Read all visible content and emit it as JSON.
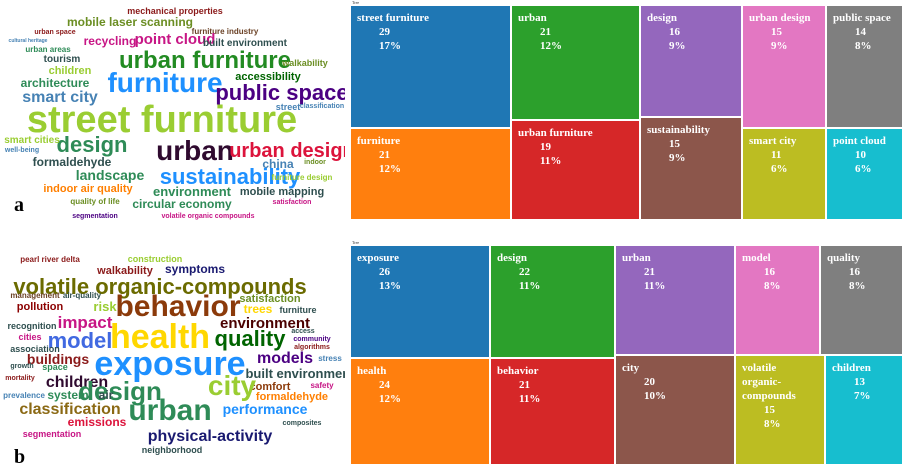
{
  "panel_labels": [
    "a",
    "b"
  ],
  "word_clouds": [
    {
      "words": [
        "mechanical properties",
        "mobile laser scanning",
        "urban space",
        "furniture industry",
        "point cloud",
        "cultural heritage",
        "built environment",
        "urban areas",
        "recycling",
        "urban furniture",
        "tourism",
        "children",
        "furniture",
        "walkability",
        "accessibility",
        "architecture",
        "smart city",
        "public space",
        "street",
        "classification",
        "street furniture",
        "design",
        "urban",
        "urban design",
        "smart cities",
        "well-being",
        "formaldehyde",
        "sustainability",
        "china",
        "indoor",
        "landscape",
        "furniture design",
        "indoor air quality",
        "environment",
        "mobile mapping",
        "quality of life",
        "circular economy",
        "segmentation",
        "volatile organic compounds",
        "satisfaction"
      ],
      "colors": [
        "#8b1a1a",
        "#6b8e23",
        "#8b1a1a",
        "#6b4226",
        "#c71585",
        "#4682b4",
        "#2f4f4f",
        "#2e8b57",
        "#c71585",
        "#228b22",
        "#2f4f4f",
        "#9acd32",
        "#1e90ff",
        "#6b8e23",
        "#006400",
        "#2e8b57",
        "#4682b4",
        "#4b0082",
        "#4682b4",
        "#4682b4",
        "#9acd32",
        "#2e8b57",
        "#2f0a2f",
        "#dc143c",
        "#9acd32",
        "#4682b4",
        "#2f4f4f",
        "#1e90ff",
        "#4682b4",
        "#6b8e23",
        "#2e8b57",
        "#9acd32",
        "#ff7f00",
        "#2e8b57",
        "#2f4f4f",
        "#6b8e23",
        "#2e8b57",
        "#4b0082",
        "#c71585",
        "#c71585"
      ]
    },
    {
      "words": [
        "pearl river delta",
        "construction",
        "walkability",
        "symptoms",
        "volatile organic-compounds",
        "management",
        "air-quality",
        "behavior",
        "satisfaction",
        "pollution",
        "risk",
        "trees",
        "furniture",
        "impact",
        "environment",
        "recognition",
        "health",
        "cities",
        "model",
        "quality",
        "access",
        "community",
        "algorithms",
        "association",
        "buildings",
        "models",
        "exposure",
        "stress",
        "growth",
        "space",
        "built environment",
        "mortality",
        "children",
        "comfort",
        "safety",
        "design",
        "city",
        "formaldehyde",
        "prevalence",
        "system",
        "air",
        "classification",
        "urban",
        "performance",
        "composites",
        "emissions",
        "segmentation",
        "physical-activity",
        "neighborhood"
      ],
      "colors": [
        "#8b1a1a",
        "#9acd32",
        "#8b1a1a",
        "#191970",
        "#6b6b00",
        "#6b4226",
        "#2f4f4f",
        "#8b3a0a",
        "#6b8e23",
        "#8b0000",
        "#9acd32",
        "#ffd700",
        "#2f4f4f",
        "#c71585",
        "#4b0000",
        "#2f4f4f",
        "#ffd700",
        "#c71585",
        "#4169e1",
        "#006400",
        "#2f4f4f",
        "#4b0082",
        "#8b1a1a",
        "#2f4f4f",
        "#8b1a1a",
        "#4b0082",
        "#1e90ff",
        "#4682b4",
        "#2f4f4f",
        "#2e8b57",
        "#2f4f4f",
        "#8b1a1a",
        "#2f0a2f",
        "#8b3a0a",
        "#c71585",
        "#2e8b57",
        "#9acd32",
        "#ff7f00",
        "#4682b4",
        "#2e8b57",
        "#2f4f4f",
        "#8b6914",
        "#2e8b57",
        "#1e90ff",
        "#2f4f4f",
        "#dc143c",
        "#c71585",
        "#191970",
        "#2f4f4f"
      ]
    }
  ],
  "chart_data": [
    {
      "type": "treemap",
      "title": "Tree",
      "categories": [
        "street furniture",
        "urban",
        "design",
        "urban design",
        "public space",
        "furniture",
        "urban furniture",
        "sustainability",
        "smart city",
        "point cloud"
      ],
      "values": [
        29,
        21,
        16,
        15,
        14,
        21,
        19,
        15,
        11,
        10
      ],
      "percent_labels": [
        "17%",
        "12%",
        "9%",
        "9%",
        "8%",
        "12%",
        "11%",
        "9%",
        "6%",
        "6%"
      ],
      "colors": [
        "#1f77b4",
        "#2ca02c",
        "#9467bd",
        "#e377c2",
        "#7f7f7f",
        "#ff7f0e",
        "#d62728",
        "#8c564b",
        "#bcbd22",
        "#17becf"
      ]
    },
    {
      "type": "treemap",
      "title": "Tree",
      "categories": [
        "exposure",
        "design",
        "urban",
        "model",
        "quality",
        "health",
        "behavior",
        "city",
        "volatile organic-compounds",
        "children"
      ],
      "values": [
        26,
        22,
        21,
        16,
        16,
        24,
        21,
        20,
        15,
        13
      ],
      "percent_labels": [
        "13%",
        "11%",
        "11%",
        "8%",
        "8%",
        "12%",
        "11%",
        "10%",
        "8%",
        "7%"
      ],
      "colors": [
        "#1f77b4",
        "#2ca02c",
        "#9467bd",
        "#e377c2",
        "#7f7f7f",
        "#ff7f0e",
        "#d62728",
        "#8c564b",
        "#bcbd22",
        "#17becf"
      ]
    }
  ]
}
